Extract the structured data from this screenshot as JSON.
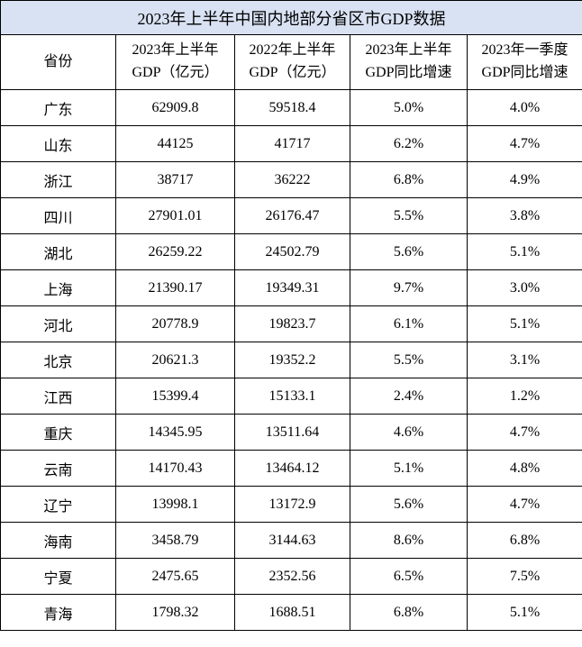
{
  "colors": {
    "title_background": "#d9e2f3",
    "border": "#000000",
    "text": "#000000"
  },
  "header_display": [
    "省份",
    "2023年上半年\nGDP（亿元）",
    "2022年上半年\nGDP（亿元）",
    "2023年上半年\nGDP同比增速",
    "2023年一季度\nGDP同比增速"
  ],
  "chart_data": {
    "type": "table",
    "title": "2023年上半年中国内地部分省区市GDP数据",
    "columns": [
      "省份",
      "2023年上半年GDP（亿元）",
      "2022年上半年GDP（亿元）",
      "2023年上半年GDP同比增速",
      "2023年一季度GDP同比增速"
    ],
    "rows": [
      [
        "广东",
        "62909.8",
        "59518.4",
        "5.0%",
        "4.0%"
      ],
      [
        "山东",
        "44125",
        "41717",
        "6.2%",
        "4.7%"
      ],
      [
        "浙江",
        "38717",
        "36222",
        "6.8%",
        "4.9%"
      ],
      [
        "四川",
        "27901.01",
        "26176.47",
        "5.5%",
        "3.8%"
      ],
      [
        "湖北",
        "26259.22",
        "24502.79",
        "5.6%",
        "5.1%"
      ],
      [
        "上海",
        "21390.17",
        "19349.31",
        "9.7%",
        "3.0%"
      ],
      [
        "河北",
        "20778.9",
        "19823.7",
        "6.1%",
        "5.1%"
      ],
      [
        "北京",
        "20621.3",
        "19352.2",
        "5.5%",
        "3.1%"
      ],
      [
        "江西",
        "15399.4",
        "15133.1",
        "2.4%",
        "1.2%"
      ],
      [
        "重庆",
        "14345.95",
        "13511.64",
        "4.6%",
        "4.7%"
      ],
      [
        "云南",
        "14170.43",
        "13464.12",
        "5.1%",
        "4.8%"
      ],
      [
        "辽宁",
        "13998.1",
        "13172.9",
        "5.6%",
        "4.7%"
      ],
      [
        "海南",
        "3458.79",
        "3144.63",
        "8.6%",
        "6.8%"
      ],
      [
        "宁夏",
        "2475.65",
        "2352.56",
        "6.5%",
        "7.5%"
      ],
      [
        "青海",
        "1798.32",
        "1688.51",
        "6.8%",
        "5.1%"
      ]
    ]
  }
}
